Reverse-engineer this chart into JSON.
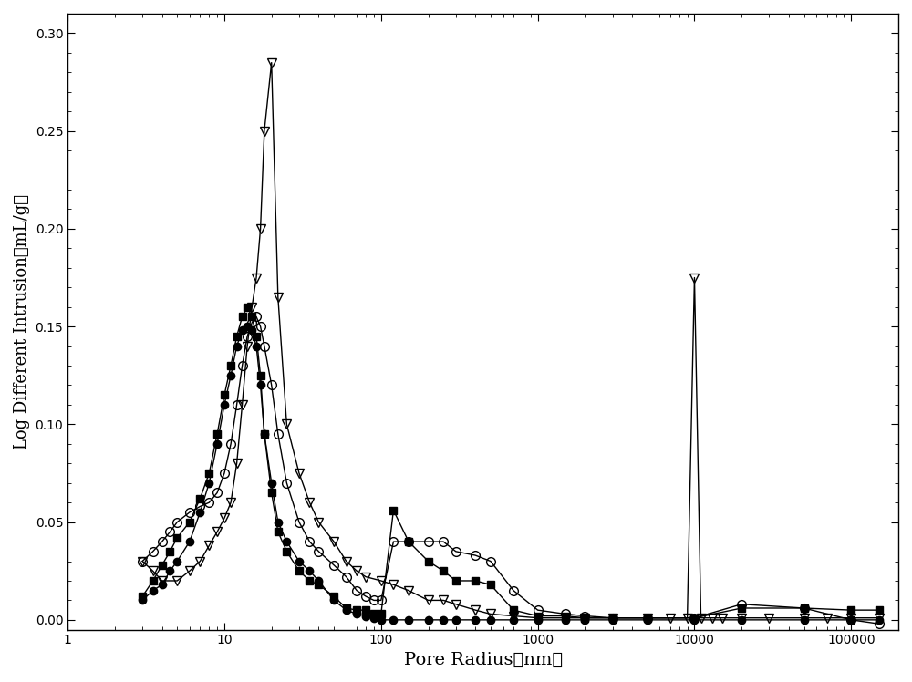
{
  "xlabel": "Pore Radius（nm）",
  "ylabel": "Log Different Intrusion（mL/g）",
  "xlim": [
    1,
    200000
  ],
  "ylim": [
    -0.005,
    0.31
  ],
  "yticks": [
    0.0,
    0.05,
    0.1,
    0.15,
    0.2,
    0.25,
    0.3
  ],
  "bg_color": "#ffffff",
  "line_color": "#000000",
  "series": [
    {
      "name": "filled_circle",
      "marker": "o",
      "filled": true,
      "color": "#000000",
      "markersize": 6,
      "x": [
        3.0,
        3.5,
        4.0,
        4.5,
        5.0,
        6.0,
        7.0,
        8.0,
        9.0,
        10.0,
        11.0,
        12.0,
        13.0,
        14.0,
        15.0,
        16.0,
        17.0,
        18.0,
        20.0,
        22.0,
        25.0,
        30.0,
        35.0,
        40.0,
        50.0,
        60.0,
        70.0,
        80.0,
        90.0,
        100.0,
        120.0,
        150.0,
        200.0,
        250.0,
        300.0,
        400.0,
        500.0,
        700.0,
        1000.0,
        1500.0,
        2000.0,
        3000.0,
        5000.0,
        10000.0,
        20000.0,
        50000.0,
        100000.0,
        150000.0
      ],
      "y": [
        0.01,
        0.015,
        0.018,
        0.025,
        0.03,
        0.04,
        0.055,
        0.07,
        0.09,
        0.11,
        0.125,
        0.14,
        0.148,
        0.15,
        0.148,
        0.14,
        0.12,
        0.095,
        0.07,
        0.05,
        0.04,
        0.03,
        0.025,
        0.02,
        0.01,
        0.005,
        0.003,
        0.002,
        0.001,
        0.0,
        0.0,
        0.0,
        0.0,
        0.0,
        0.0,
        0.0,
        0.0,
        0.0,
        0.0,
        0.0,
        0.0,
        0.0,
        0.0,
        0.0,
        0.0,
        0.0,
        0.0,
        0.0
      ]
    },
    {
      "name": "filled_square",
      "marker": "s",
      "filled": true,
      "color": "#000000",
      "markersize": 6,
      "x": [
        3.0,
        3.5,
        4.0,
        4.5,
        5.0,
        6.0,
        7.0,
        8.0,
        9.0,
        10.0,
        11.0,
        12.0,
        13.0,
        14.0,
        15.0,
        16.0,
        17.0,
        18.0,
        20.0,
        22.0,
        25.0,
        30.0,
        35.0,
        40.0,
        50.0,
        60.0,
        70.0,
        80.0,
        90.0,
        100.0,
        120.0,
        150.0,
        200.0,
        250.0,
        300.0,
        400.0,
        500.0,
        700.0,
        1000.0,
        1500.0,
        2000.0,
        3000.0,
        5000.0,
        10000.0,
        20000.0,
        50000.0,
        100000.0,
        150000.0
      ],
      "y": [
        0.012,
        0.02,
        0.028,
        0.035,
        0.042,
        0.05,
        0.062,
        0.075,
        0.095,
        0.115,
        0.13,
        0.145,
        0.155,
        0.16,
        0.155,
        0.145,
        0.125,
        0.095,
        0.065,
        0.045,
        0.035,
        0.025,
        0.02,
        0.018,
        0.012,
        0.006,
        0.005,
        0.005,
        0.003,
        0.003,
        0.056,
        0.04,
        0.03,
        0.025,
        0.02,
        0.02,
        0.018,
        0.005,
        0.002,
        0.002,
        0.001,
        0.001,
        0.001,
        0.001,
        0.006,
        0.006,
        0.005,
        0.005
      ]
    },
    {
      "name": "open_circle",
      "marker": "o",
      "filled": false,
      "color": "#000000",
      "markersize": 7,
      "x": [
        3.0,
        3.5,
        4.0,
        4.5,
        5.0,
        6.0,
        7.0,
        8.0,
        9.0,
        10.0,
        11.0,
        12.0,
        13.0,
        14.0,
        15.0,
        16.0,
        17.0,
        18.0,
        20.0,
        22.0,
        25.0,
        30.0,
        35.0,
        40.0,
        50.0,
        60.0,
        70.0,
        80.0,
        90.0,
        100.0,
        120.0,
        150.0,
        200.0,
        250.0,
        300.0,
        400.0,
        500.0,
        700.0,
        1000.0,
        1500.0,
        2000.0,
        3000.0,
        5000.0,
        10000.0,
        20000.0,
        50000.0,
        100000.0,
        150000.0
      ],
      "y": [
        0.03,
        0.035,
        0.04,
        0.045,
        0.05,
        0.055,
        0.058,
        0.06,
        0.065,
        0.075,
        0.09,
        0.11,
        0.13,
        0.145,
        0.152,
        0.155,
        0.15,
        0.14,
        0.12,
        0.095,
        0.07,
        0.05,
        0.04,
        0.035,
        0.028,
        0.022,
        0.015,
        0.012,
        0.01,
        0.01,
        0.04,
        0.04,
        0.04,
        0.04,
        0.035,
        0.033,
        0.03,
        0.015,
        0.005,
        0.003,
        0.002,
        0.001,
        0.001,
        0.001,
        0.008,
        0.006,
        0.0,
        -0.002
      ]
    },
    {
      "name": "open_triangle_down",
      "marker": "v",
      "filled": false,
      "color": "#000000",
      "markersize": 7,
      "x": [
        3.0,
        3.5,
        4.0,
        5.0,
        6.0,
        7.0,
        8.0,
        9.0,
        10.0,
        11.0,
        12.0,
        13.0,
        14.0,
        15.0,
        16.0,
        17.0,
        18.0,
        20.0,
        22.0,
        25.0,
        30.0,
        35.0,
        40.0,
        50.0,
        60.0,
        70.0,
        80.0,
        100.0,
        120.0,
        150.0,
        200.0,
        250.0,
        300.0,
        400.0,
        500.0,
        700.0,
        1000.0,
        1500.0,
        2000.0,
        3000.0,
        5000.0,
        7000.0,
        9000.0,
        10000.0,
        11000.0,
        13000.0,
        15000.0,
        20000.0,
        30000.0,
        50000.0,
        70000.0,
        100000.0,
        150000.0
      ],
      "y": [
        0.03,
        0.025,
        0.02,
        0.02,
        0.025,
        0.03,
        0.038,
        0.045,
        0.052,
        0.06,
        0.08,
        0.11,
        0.14,
        0.16,
        0.175,
        0.2,
        0.25,
        0.285,
        0.165,
        0.1,
        0.075,
        0.06,
        0.05,
        0.04,
        0.03,
        0.025,
        0.022,
        0.02,
        0.018,
        0.015,
        0.01,
        0.01,
        0.008,
        0.005,
        0.003,
        0.002,
        0.001,
        0.001,
        0.001,
        0.001,
        0.001,
        0.001,
        0.001,
        0.175,
        0.001,
        0.001,
        0.001,
        0.001,
        0.001,
        0.001,
        0.001,
        0.001,
        0.001
      ]
    }
  ]
}
